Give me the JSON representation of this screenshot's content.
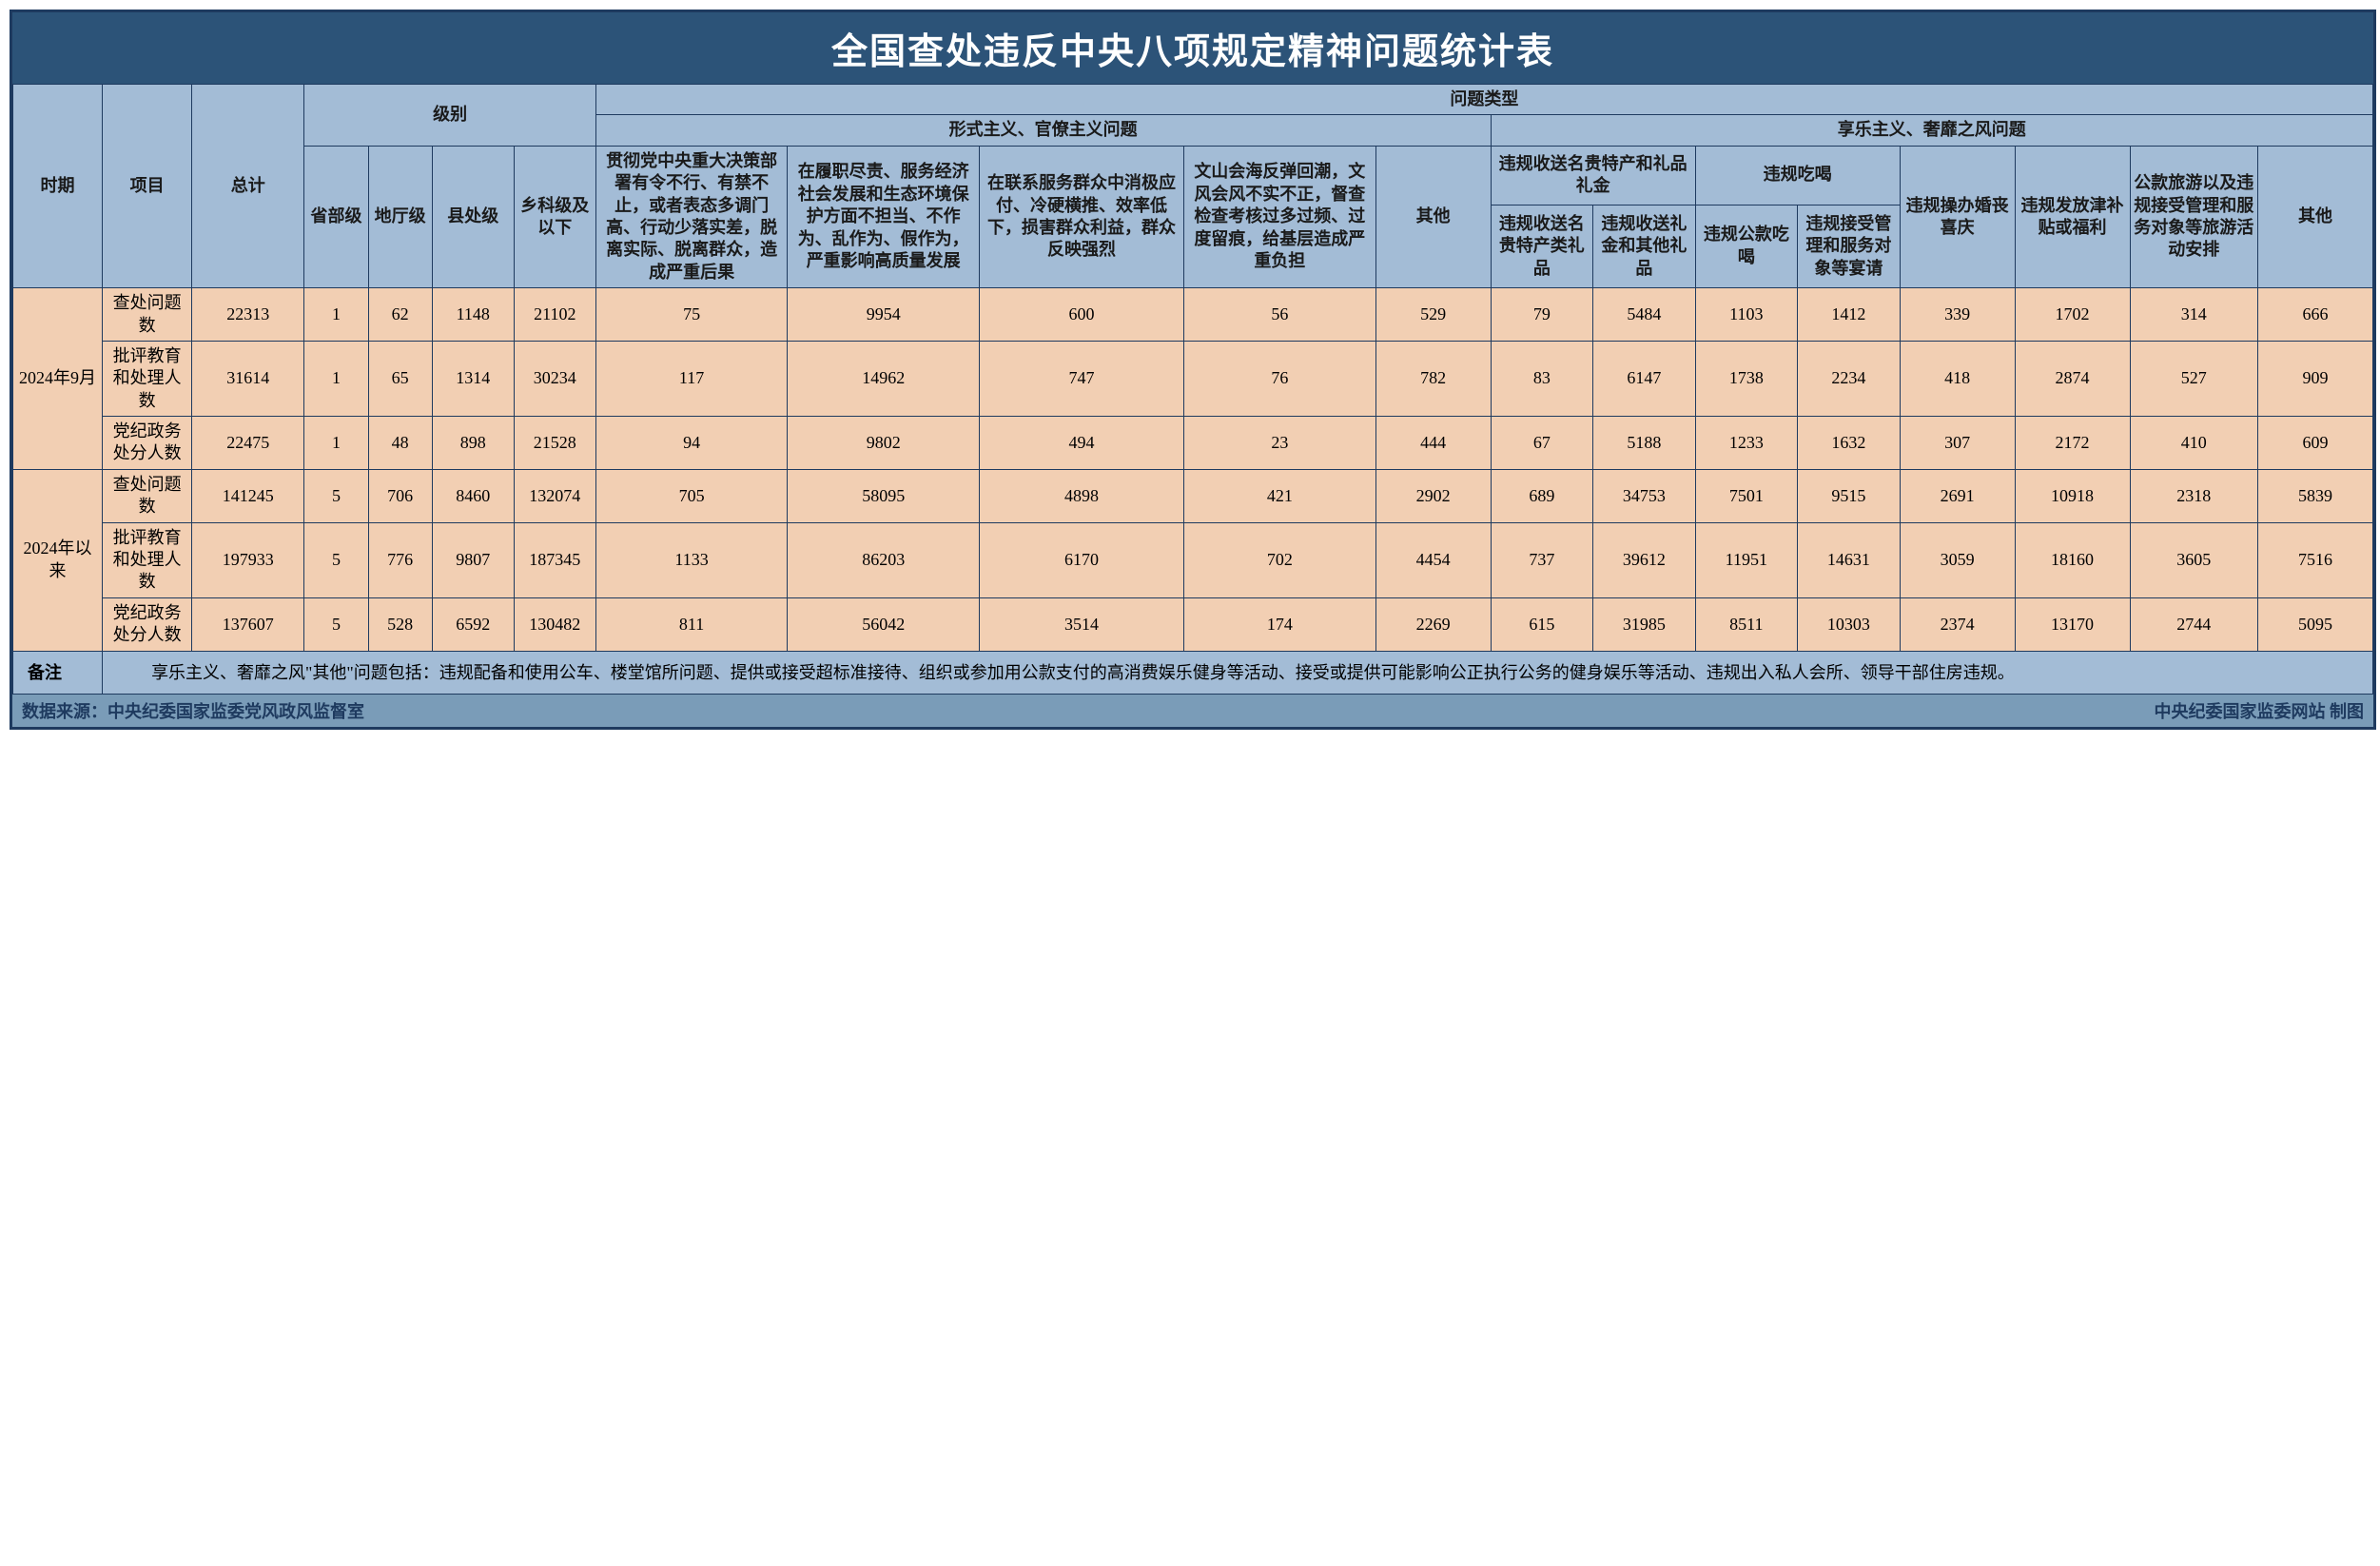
{
  "title": "全国查处违反中央八项规定精神问题统计表",
  "headers": {
    "period": "时期",
    "item": "项目",
    "total": "总计",
    "level": "级别",
    "problemType": "问题类型",
    "formalism": "形式主义、官僚主义问题",
    "hedonism": "享乐主义、奢靡之风问题",
    "levels": {
      "provincial": "省部级",
      "prefecture": "地厅级",
      "county": "县处级",
      "township": "乡科级及以下"
    },
    "formalismCols": {
      "c1": "贯彻党中央重大决策部署有令不行、有禁不止，或者表态多调门高、行动少落实差，脱离实际、脱离群众，造成严重后果",
      "c2": "在履职尽责、服务经济社会发展和生态环境保护方面不担当、不作为、乱作为、假作为，严重影响高质量发展",
      "c3": "在联系服务群众中消极应付、冷硬横推、效率低下，损害群众利益，群众反映强烈",
      "c4": "文山会海反弹回潮，文风会风不实不正，督查检查考核过多过频、过度留痕，给基层造成严重负担",
      "c5": "其他"
    },
    "hedonismCols": {
      "gifts": "违规收送名贵特产和礼品礼金",
      "giftsSub1": "违规收送名贵特产类礼品",
      "giftsSub2": "违规收送礼金和其他礼品",
      "dining": "违规吃喝",
      "diningSub1": "违规公款吃喝",
      "diningSub2": "违规接受管理和服务对象等宴请",
      "wedding": "违规操办婚丧喜庆",
      "allowance": "违规发放津补贴或福利",
      "travel": "公款旅游以及违规接受管理和服务对象等旅游活动安排",
      "other": "其他"
    }
  },
  "periods": [
    {
      "label": "2024年9月",
      "rows": [
        {
          "item": "查处问题数",
          "data": [
            22313,
            1,
            62,
            1148,
            21102,
            75,
            9954,
            600,
            56,
            529,
            79,
            5484,
            1103,
            1412,
            339,
            1702,
            314,
            666
          ]
        },
        {
          "item": "批评教育和处理人数",
          "data": [
            31614,
            1,
            65,
            1314,
            30234,
            117,
            14962,
            747,
            76,
            782,
            83,
            6147,
            1738,
            2234,
            418,
            2874,
            527,
            909
          ]
        },
        {
          "item": "党纪政务处分人数",
          "data": [
            22475,
            1,
            48,
            898,
            21528,
            94,
            9802,
            494,
            23,
            444,
            67,
            5188,
            1233,
            1632,
            307,
            2172,
            410,
            609
          ]
        }
      ]
    },
    {
      "label": "2024年以来",
      "rows": [
        {
          "item": "查处问题数",
          "data": [
            141245,
            5,
            706,
            8460,
            132074,
            705,
            58095,
            4898,
            421,
            2902,
            689,
            34753,
            7501,
            9515,
            2691,
            10918,
            2318,
            5839
          ]
        },
        {
          "item": "批评教育和处理人数",
          "data": [
            197933,
            5,
            776,
            9807,
            187345,
            1133,
            86203,
            6170,
            702,
            4454,
            737,
            39612,
            11951,
            14631,
            3059,
            18160,
            3605,
            7516
          ]
        },
        {
          "item": "党纪政务处分人数",
          "data": [
            137607,
            5,
            528,
            6592,
            130482,
            811,
            56042,
            3514,
            174,
            2269,
            615,
            31985,
            8511,
            10303,
            2374,
            13170,
            2744,
            5095
          ]
        }
      ]
    }
  ],
  "note": {
    "label": "备注",
    "text": "享乐主义、奢靡之风\"其他\"问题包括：违规配备和使用公车、楼堂馆所问题、提供或接受超标准接待、组织或参加用公款支付的高消费娱乐健身等活动、接受或提供可能影响公正执行公务的健身娱乐等活动、违规出入私人会所、领导干部住房违规。"
  },
  "footer": {
    "source": "数据来源：中央纪委国家监委党风政风监督室",
    "credit": "中央纪委国家监委网站 制图"
  },
  "colors": {
    "titleBg": "#2c5378",
    "headerBg": "#a3bcd6",
    "dataBg": "#f2cfb3",
    "footerBg": "#7a9cb8",
    "border": "#1e3a5f"
  }
}
